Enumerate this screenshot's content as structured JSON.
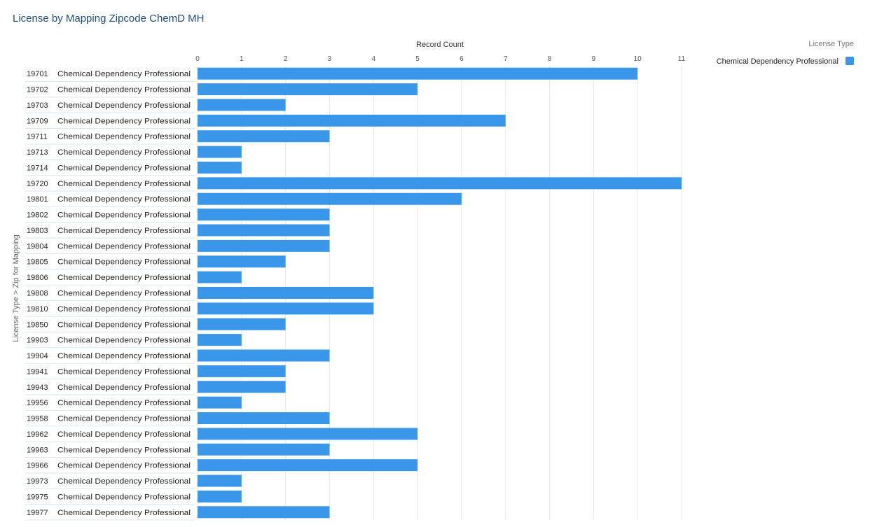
{
  "title": "License by Mapping Zipcode ChemD MH",
  "chart_data": {
    "type": "bar",
    "orientation": "horizontal",
    "title": "License by Mapping Zipcode ChemD MH",
    "xlabel": "Record Count",
    "ylabel": "License Type  >  Zip for Mapping",
    "xlim": [
      0,
      11
    ],
    "x_ticks": [
      0,
      1,
      2,
      3,
      4,
      5,
      6,
      7,
      8,
      9,
      10,
      11
    ],
    "grid": true,
    "legend_title": "License Type",
    "legend_position": "top-right",
    "group_label": "Chemical Dependency Professional",
    "categories": [
      "19701",
      "19702",
      "19703",
      "19709",
      "19711",
      "19713",
      "19714",
      "19720",
      "19801",
      "19802",
      "19803",
      "19804",
      "19805",
      "19806",
      "19808",
      "19810",
      "19850",
      "19903",
      "19904",
      "19941",
      "19943",
      "19956",
      "19958",
      "19962",
      "19963",
      "19966",
      "19973",
      "19975",
      "19977"
    ],
    "series": [
      {
        "name": "Chemical Dependency Professional",
        "color": "#3a96e9",
        "values": [
          10,
          5,
          2,
          7,
          3,
          1,
          1,
          11,
          6,
          3,
          3,
          3,
          2,
          1,
          4,
          4,
          2,
          1,
          3,
          2,
          2,
          1,
          3,
          5,
          3,
          5,
          1,
          1,
          3
        ]
      }
    ]
  }
}
